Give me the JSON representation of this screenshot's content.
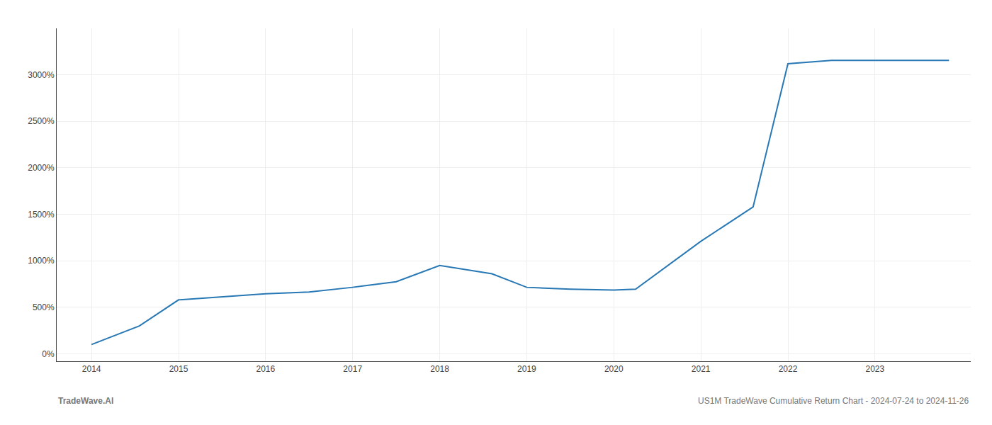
{
  "chart_data": {
    "type": "line",
    "x": [
      2014.0,
      2014.55,
      2015.0,
      2015.5,
      2016.0,
      2016.5,
      2017.0,
      2017.5,
      2018.0,
      2018.6,
      2019.0,
      2019.5,
      2020.0,
      2020.25,
      2021.0,
      2021.6,
      2022.0,
      2022.5,
      2023.0,
      2023.85
    ],
    "values": [
      100,
      300,
      580,
      615,
      645,
      665,
      715,
      775,
      950,
      860,
      715,
      695,
      685,
      695,
      1210,
      1580,
      3120,
      3155,
      3155,
      3155
    ],
    "color": "#2878b5",
    "xlim": [
      2013.6,
      2024.1
    ],
    "ylim": [
      -80,
      3500
    ],
    "xticks": [
      2014,
      2015,
      2016,
      2017,
      2018,
      2019,
      2020,
      2021,
      2022,
      2023
    ],
    "yticks": [
      {
        "value": 0,
        "label": "0%"
      },
      {
        "value": 500,
        "label": "500%"
      },
      {
        "value": 1000,
        "label": "1000%"
      },
      {
        "value": 1500,
        "label": "1500%"
      },
      {
        "value": 2000,
        "label": "2000%"
      },
      {
        "value": 2500,
        "label": "2500%"
      },
      {
        "value": 3000,
        "label": "3000%"
      }
    ],
    "grid": true,
    "annotations": [
      "TradeWave.AI",
      "US1M TradeWave Cumulative Return Chart - 2024-07-24 to 2024-11-26"
    ]
  }
}
